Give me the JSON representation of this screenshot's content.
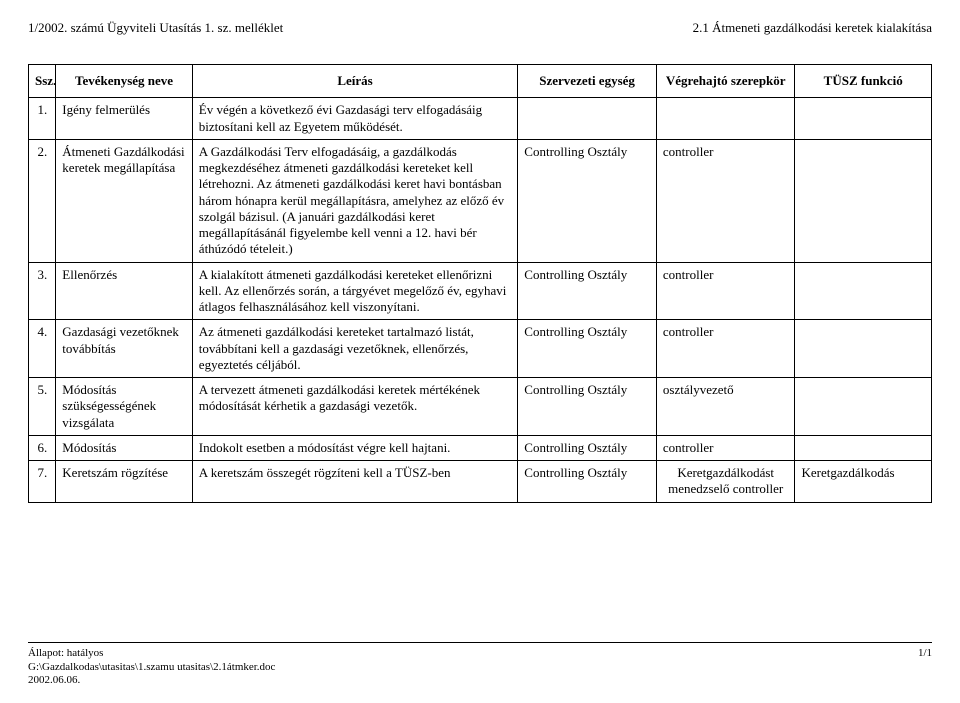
{
  "header": {
    "left": "1/2002. számú Ügyviteli Utasítás 1. sz. melléklet",
    "right": "2.1 Átmeneti gazdálkodási keretek kialakítása"
  },
  "columns": {
    "idx": "Ssz.",
    "name": "Tevékenység neve",
    "desc": "Leírás",
    "unit": "Szervezeti egység",
    "role": "Végrehajtó szerepkör",
    "func": "TÜSZ funkció"
  },
  "rows": [
    {
      "idx": "1.",
      "name": "Igény felmerülés",
      "desc": "Év végén a következő évi Gazdasági terv elfogadásáig biztosítani kell az Egyetem működését.",
      "unit": "",
      "role": "",
      "func": ""
    },
    {
      "idx": "2.",
      "name": "Átmeneti Gazdálkodási keretek megállapítása",
      "desc": "A Gazdálkodási Terv elfogadásáig, a gazdálkodás megkezdéséhez átmeneti gazdálkodási kereteket kell létrehozni. Az átmeneti gazdálkodási keret havi bontásban három hónapra kerül megállapításra, amelyhez az előző év szolgál bázisul. (A januári gazdálkodási keret megállapításánál figyelembe kell venni a 12. havi bér áthúzódó tételeit.)",
      "unit": "Controlling Osztály",
      "role": "controller",
      "func": ""
    },
    {
      "idx": "3.",
      "name": "Ellenőrzés",
      "desc": "A kialakított átmeneti gazdálkodási kereteket ellenőrizni kell. Az ellenőrzés során, a tárgyévet megelőző év, egyhavi átlagos felhasználásához kell viszonyítani.",
      "unit": "Controlling Osztály",
      "role": "controller",
      "func": ""
    },
    {
      "idx": "4.",
      "name": "Gazdasági vezetőknek továbbítás",
      "desc": "Az átmeneti gazdálkodási kereteket tartalmazó listát, továbbítani kell a gazdasági vezetőknek, ellenőrzés, egyeztetés céljából.",
      "unit": "Controlling Osztály",
      "role": "controller",
      "func": ""
    },
    {
      "idx": "5.",
      "name": "Módosítás szükségességének vizsgálata",
      "desc": "A tervezett átmeneti gazdálkodási keretek mértékének módosítását kérhetik a gazdasági vezetők.",
      "unit": "Controlling Osztály",
      "role": "osztályvezető",
      "func": ""
    },
    {
      "idx": "6.",
      "name": "Módosítás",
      "desc": "Indokolt esetben a módosítást végre kell hajtani.",
      "unit": "Controlling Osztály",
      "role": "controller",
      "func": ""
    },
    {
      "idx": "7.",
      "name": "Keretszám rögzítése",
      "desc": "A keretszám összegét rögzíteni kell a TÜSZ-ben",
      "unit": "Controlling Osztály",
      "role": "Keretgazdálkodást menedzselő controller",
      "func": "Keretgazdálkodás"
    }
  ],
  "footer": {
    "status": "Állapot: hatályos",
    "path": "G:\\Gazdalkodas\\utasitas\\1.szamu utasitas\\2.1átmker.doc",
    "date": "2002.06.06.",
    "page": "1/1"
  }
}
